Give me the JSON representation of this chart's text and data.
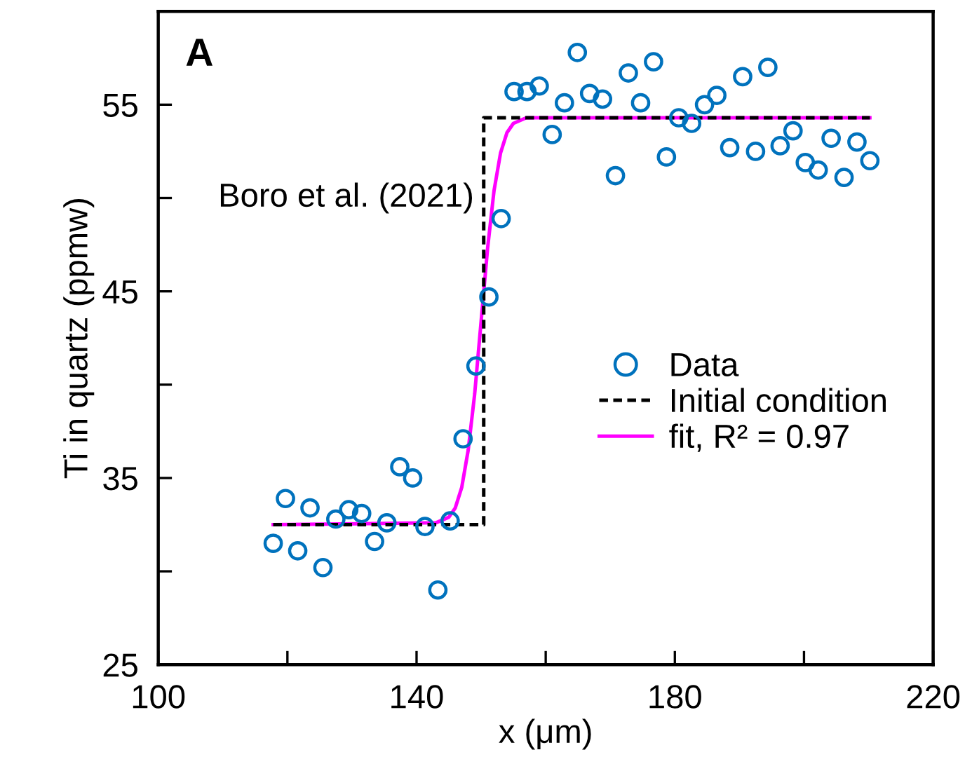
{
  "chart_data": {
    "type": "scatter",
    "xlabel": "x (μm)",
    "ylabel": "Ti in quartz (ppmw)",
    "xlim": [
      100,
      220
    ],
    "ylim": [
      25,
      60
    ],
    "xticks": [
      100,
      {
        "value": 120,
        "label": null
      },
      140,
      {
        "value": 160,
        "label": null
      },
      180,
      {
        "value": 200,
        "label": null
      },
      220
    ],
    "yticks": [
      25,
      {
        "value": 30,
        "label": null
      },
      35,
      {
        "value": 40,
        "label": null
      },
      45,
      {
        "value": 50,
        "label": null
      },
      55
    ],
    "grid": false,
    "legend": "right",
    "annotations": [
      "A",
      {
        "text": "Boro et al. (2021)",
        "x": 150.4,
        "y": 50
      }
    ],
    "series": [
      {
        "name": "Data",
        "marker": "circle",
        "color": "#0072bd",
        "x": [
          117.8,
          119.7,
          121.6,
          123.5,
          125.5,
          127.5,
          129.5,
          131.5,
          133.5,
          135.4,
          137.4,
          139.4,
          141.3,
          143.3,
          145.2,
          147.2,
          149.2,
          151.2,
          153.1,
          155.1,
          157.1,
          159.0,
          161.0,
          162.9,
          164.9,
          166.8,
          168.8,
          170.8,
          172.8,
          174.7,
          176.7,
          178.7,
          180.6,
          182.6,
          184.6,
          186.5,
          188.5,
          190.5,
          192.5,
          194.4,
          196.3,
          198.3,
          200.2,
          202.2,
          204.2,
          206.2,
          208.2,
          210.2
        ],
        "values": [
          31.5,
          33.9,
          31.1,
          33.4,
          30.2,
          32.8,
          33.3,
          33.1,
          31.6,
          32.6,
          35.6,
          35.0,
          32.4,
          29.0,
          32.7,
          37.1,
          41.0,
          44.7,
          48.9,
          55.7,
          55.7,
          56.0,
          53.4,
          55.1,
          57.8,
          55.6,
          55.3,
          51.2,
          56.7,
          55.1,
          57.3,
          52.2,
          54.3,
          54.0,
          55.0,
          55.5,
          52.7,
          56.5,
          52.5,
          57.0,
          52.8,
          53.6,
          51.9,
          51.5,
          53.2,
          51.1,
          53.0,
          52.0
        ]
      },
      {
        "name": "Initial condition",
        "type": "line",
        "line_style": "dashed",
        "marker": "none",
        "color": "#000000",
        "x": [
          117.8,
          150.4,
          150.4,
          210.2
        ],
        "values": [
          32.5,
          32.5,
          54.3,
          54.3
        ]
      },
      {
        "name": "fit, R² = 0.97",
        "type": "line",
        "line_style": "solid",
        "marker": "none",
        "color": "#ff00ff",
        "x": [
          117.8,
          143,
          145,
          146,
          147,
          148,
          149,
          150,
          151,
          152,
          153,
          154,
          155,
          157,
          210.2
        ],
        "values": [
          32.5,
          32.6,
          32.9,
          33.4,
          34.5,
          36.5,
          39.5,
          43.4,
          47.3,
          50.4,
          52.4,
          53.5,
          54.0,
          54.3,
          54.3
        ]
      }
    ]
  }
}
